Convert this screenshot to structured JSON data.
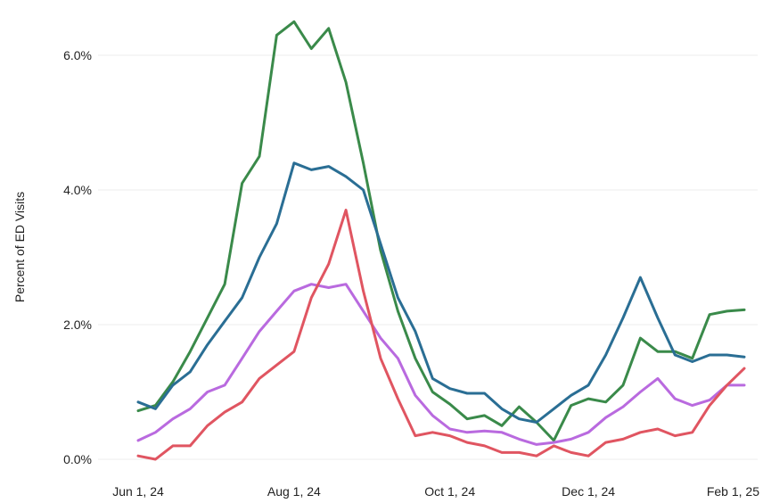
{
  "chart_data": {
    "type": "line",
    "ylabel": "Percent of ED Visits",
    "xlabel": "",
    "ylim": [
      0.0,
      6.6
    ],
    "y_ticks": [
      {
        "value": 0.0,
        "label": "0.0%"
      },
      {
        "value": 2.0,
        "label": "2.0%"
      },
      {
        "value": 4.0,
        "label": "4.0%"
      },
      {
        "value": 6.0,
        "label": "6.0%"
      }
    ],
    "x_ticks": [
      {
        "index": 0,
        "label": "Jun 1, 24"
      },
      {
        "index": 9,
        "label": "Aug 1, 24"
      },
      {
        "index": 18,
        "label": "Oct 1, 24"
      },
      {
        "index": 26,
        "label": "Dec 1, 24"
      },
      {
        "index": 35,
        "label": "Feb 1, 25"
      }
    ],
    "grid": true,
    "legend": "none",
    "series": [
      {
        "color": "#3a8a4a",
        "values": [
          0.72,
          0.8,
          1.15,
          1.6,
          2.1,
          2.6,
          4.1,
          4.5,
          6.3,
          6.5,
          6.1,
          6.4,
          5.6,
          4.4,
          3.1,
          2.2,
          1.5,
          1.0,
          0.82,
          0.6,
          0.65,
          0.5,
          0.78,
          0.55,
          0.28,
          0.8,
          0.9,
          0.85,
          1.1,
          1.8,
          1.6,
          1.6,
          1.5,
          2.15,
          2.2,
          2.22
        ]
      },
      {
        "color": "#2a6e94",
        "values": [
          0.85,
          0.75,
          1.1,
          1.3,
          1.7,
          2.05,
          2.4,
          3.0,
          3.5,
          4.4,
          4.3,
          4.35,
          4.2,
          4.0,
          3.2,
          2.4,
          1.9,
          1.2,
          1.05,
          0.98,
          0.98,
          0.75,
          0.6,
          0.55,
          0.75,
          0.95,
          1.1,
          1.55,
          2.1,
          2.7,
          2.1,
          1.55,
          1.45,
          1.55,
          1.55,
          1.52
        ]
      },
      {
        "color": "#b96adf",
        "values": [
          0.28,
          0.4,
          0.6,
          0.75,
          1.0,
          1.1,
          1.5,
          1.9,
          2.2,
          2.5,
          2.6,
          2.55,
          2.6,
          2.2,
          1.8,
          1.5,
          0.95,
          0.65,
          0.45,
          0.4,
          0.42,
          0.4,
          0.3,
          0.22,
          0.25,
          0.3,
          0.4,
          0.62,
          0.78,
          1.0,
          1.2,
          0.9,
          0.8,
          0.88,
          1.1,
          1.1
        ]
      },
      {
        "color": "#e05561",
        "values": [
          0.05,
          0.0,
          0.2,
          0.2,
          0.5,
          0.7,
          0.85,
          1.2,
          1.4,
          1.6,
          2.4,
          2.9,
          3.7,
          2.5,
          1.5,
          0.9,
          0.35,
          0.4,
          0.35,
          0.25,
          0.2,
          0.1,
          0.1,
          0.05,
          0.2,
          0.1,
          0.05,
          0.25,
          0.3,
          0.4,
          0.45,
          0.35,
          0.4,
          0.8,
          1.1,
          1.35
        ]
      }
    ]
  }
}
